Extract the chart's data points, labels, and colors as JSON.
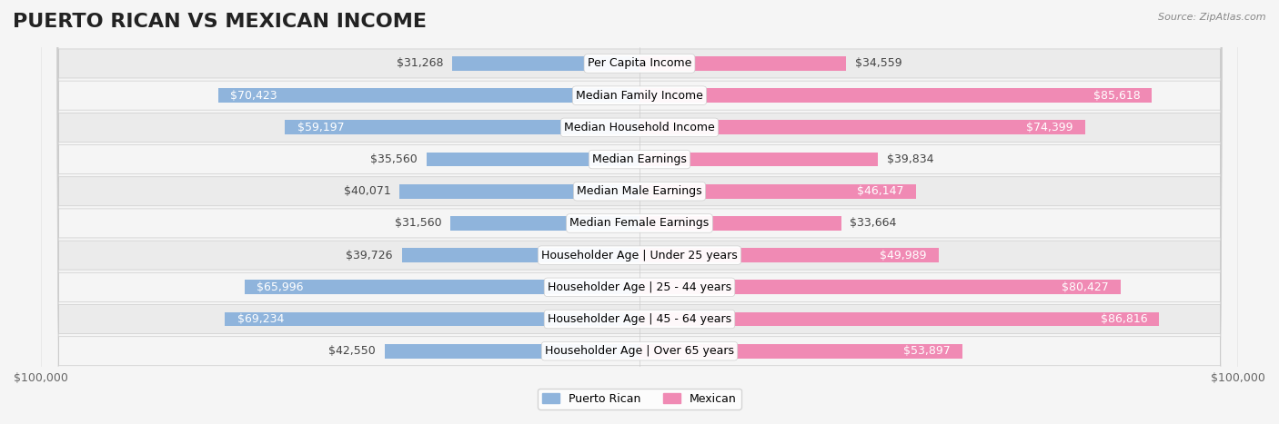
{
  "title": "PUERTO RICAN VS MEXICAN INCOME",
  "source": "Source: ZipAtlas.com",
  "categories": [
    "Per Capita Income",
    "Median Family Income",
    "Median Household Income",
    "Median Earnings",
    "Median Male Earnings",
    "Median Female Earnings",
    "Householder Age | Under 25 years",
    "Householder Age | 25 - 44 years",
    "Householder Age | 45 - 64 years",
    "Householder Age | Over 65 years"
  ],
  "puerto_rican": [
    31268,
    70423,
    59197,
    35560,
    40071,
    31560,
    39726,
    65996,
    69234,
    42550
  ],
  "mexican": [
    34559,
    85618,
    74399,
    39834,
    46147,
    33664,
    49989,
    80427,
    86816,
    53897
  ],
  "max_val": 100000,
  "blue_color": "#8fb4dc",
  "pink_color": "#f08ab4",
  "blue_label_color": "#6fa0d0",
  "pink_label_color": "#e87aaa",
  "bg_color": "#f5f5f5",
  "row_bg": "#ffffff",
  "row_alt_bg": "#f0f0f0",
  "label_bg": "#f0f0f0",
  "title_fontsize": 16,
  "label_fontsize": 9,
  "value_fontsize": 9,
  "axis_fontsize": 9
}
